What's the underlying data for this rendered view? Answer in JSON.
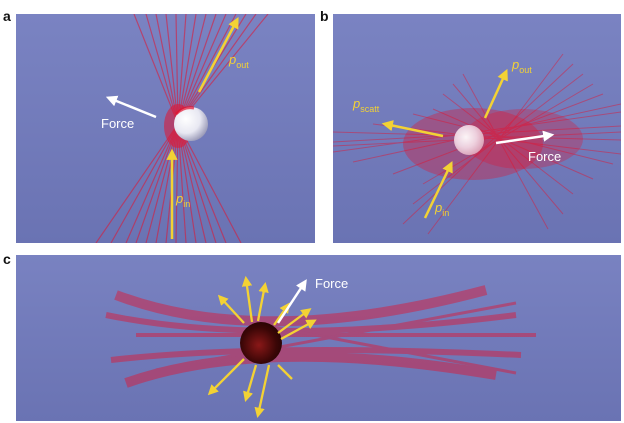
{
  "panels": {
    "a": {
      "label": "a",
      "force": "Force",
      "p_out": {
        "sym": "p",
        "sub": "out"
      },
      "p_in": {
        "sym": "p",
        "sub": "in"
      }
    },
    "b": {
      "label": "b",
      "force": "Force",
      "p_out": {
        "sym": "p",
        "sub": "out"
      },
      "p_in": {
        "sym": "p",
        "sub": "in"
      },
      "p_scatt": {
        "sym": "p",
        "sub": "scatt"
      }
    },
    "c": {
      "label": "c",
      "force": "Force"
    }
  },
  "colors": {
    "background": "#6f78b6",
    "beam": "#e3122f",
    "momentum_arrow": "#f3d234",
    "force_arrow": "#ffffff",
    "particle_light": "#ffffff",
    "particle_dark": "#3a0606"
  }
}
